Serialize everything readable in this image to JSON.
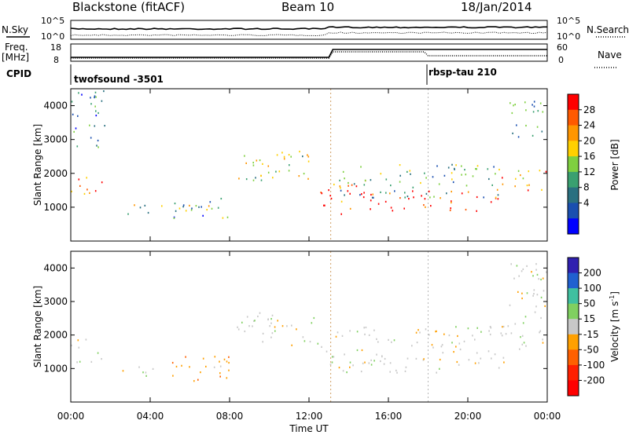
{
  "header": {
    "station": "Blackstone (fitACF)",
    "beam": "Beam 10",
    "date": "18/Jan/2014"
  },
  "top_strip": {
    "nsky_label": "N.Sky",
    "nsearch_label": "N.Search",
    "freq_label_1": "Freq.",
    "freq_label_2": "[MHz]",
    "nave_label": "Nave",
    "cpid_label": "CPID",
    "ticks": {
      "noise_top_left": "10^5",
      "noise_bottom_left": "10^0",
      "noise_top_right": "10^5",
      "noise_bottom_right": "10^0",
      "freq_top": "18",
      "freq_bottom": "8",
      "nave_top": "60",
      "nave_bottom": "0"
    },
    "cpid_segments": [
      {
        "label": "twofsound -3501",
        "start_hour": 0
      },
      {
        "label": "rbsp-tau 210",
        "start_hour": 18
      }
    ]
  },
  "x_axis": {
    "label": "Time UT",
    "ticks": [
      "00:00",
      "04:00",
      "08:00",
      "12:00",
      "16:00",
      "20:00",
      "00:00"
    ]
  },
  "power_colorbar": {
    "label": "Power [dB]",
    "ticks": [
      "28",
      "24",
      "20",
      "16",
      "12",
      "8",
      "4"
    ],
    "colors": [
      "#ff0000",
      "#ff5a00",
      "#ff9600",
      "#ffd000",
      "#7fd040",
      "#3aa070",
      "#2a7080",
      "#1a4fb0",
      "#0000ff"
    ]
  },
  "velocity_colorbar": {
    "label_main": "Velocity [m s",
    "label_exp": "-1",
    "label_end": "]",
    "ticks": [
      "200",
      "100",
      "50",
      "15",
      "-15",
      "-50",
      "-100",
      "-200"
    ],
    "colors": [
      "#3020b0",
      "#2060d0",
      "#40c0a0",
      "#80d060",
      "#c8c8c8",
      "#ffa000",
      "#ff6000",
      "#ff2000",
      "#ff0000"
    ]
  },
  "chart_data": [
    {
      "type": "heatmap",
      "title": "Power",
      "xlabel": "",
      "ylabel": "Slant Range [km]",
      "xlim": [
        0,
        24
      ],
      "ylim": [
        0,
        4500
      ],
      "yticks": [
        "1000",
        "2000",
        "3000",
        "4000"
      ],
      "colorbar": "power",
      "scatter_regions": [
        {
          "t0": 0.0,
          "t1": 1.6,
          "r0": 1200,
          "r1": 1900,
          "value_db": 24
        },
        {
          "t0": 0.0,
          "t1": 1.7,
          "r0": 2600,
          "r1": 4500,
          "value_db": 8
        },
        {
          "t0": 2.6,
          "t1": 7.2,
          "r0": 800,
          "r1": 1100,
          "value_db": 14
        },
        {
          "t0": 5.0,
          "t1": 8.3,
          "r0": 700,
          "r1": 1300,
          "value_db": 8
        },
        {
          "t0": 8.3,
          "t1": 12.5,
          "r0": 1700,
          "r1": 2700,
          "value_db": 16
        },
        {
          "t0": 12.5,
          "t1": 15.0,
          "r0": 800,
          "r1": 1700,
          "value_db": 26
        },
        {
          "t0": 15.0,
          "t1": 21.5,
          "r0": 900,
          "r1": 1500,
          "value_db": 28
        },
        {
          "t0": 13.5,
          "t1": 22.0,
          "r0": 1300,
          "r1": 2300,
          "value_db": 12
        },
        {
          "t0": 21.5,
          "t1": 24.0,
          "r0": 1500,
          "r1": 2200,
          "value_db": 20
        },
        {
          "t0": 22.0,
          "t1": 24.0,
          "r0": 3000,
          "r1": 4200,
          "value_db": 10
        }
      ]
    },
    {
      "type": "heatmap",
      "title": "Velocity",
      "xlabel": "Time UT",
      "ylabel": "Slant Range [km]",
      "xlim": [
        0,
        24
      ],
      "ylim": [
        0,
        4500
      ],
      "yticks": [
        "1000",
        "2000",
        "3000",
        "4000"
      ],
      "colorbar": "velocity",
      "scatter_regions": [
        {
          "t0": 0.0,
          "t1": 1.6,
          "r0": 1200,
          "r1": 1900,
          "value_ms": 0
        },
        {
          "t0": 2.6,
          "t1": 5.0,
          "r0": 800,
          "r1": 1100,
          "value_ms": 0
        },
        {
          "t0": 5.0,
          "t1": 8.0,
          "r0": 600,
          "r1": 1500,
          "value_ms": -60
        },
        {
          "t0": 8.3,
          "t1": 12.5,
          "r0": 1700,
          "r1": 2700,
          "value_ms": 0
        },
        {
          "t0": 12.5,
          "t1": 13.2,
          "r0": 800,
          "r1": 1700,
          "value_ms": 40
        },
        {
          "t0": 13.2,
          "t1": 22.0,
          "r0": 900,
          "r1": 2300,
          "value_ms": 0
        },
        {
          "t0": 22.0,
          "t1": 24.0,
          "r0": 1500,
          "r1": 4200,
          "value_ms": 0
        }
      ]
    }
  ]
}
